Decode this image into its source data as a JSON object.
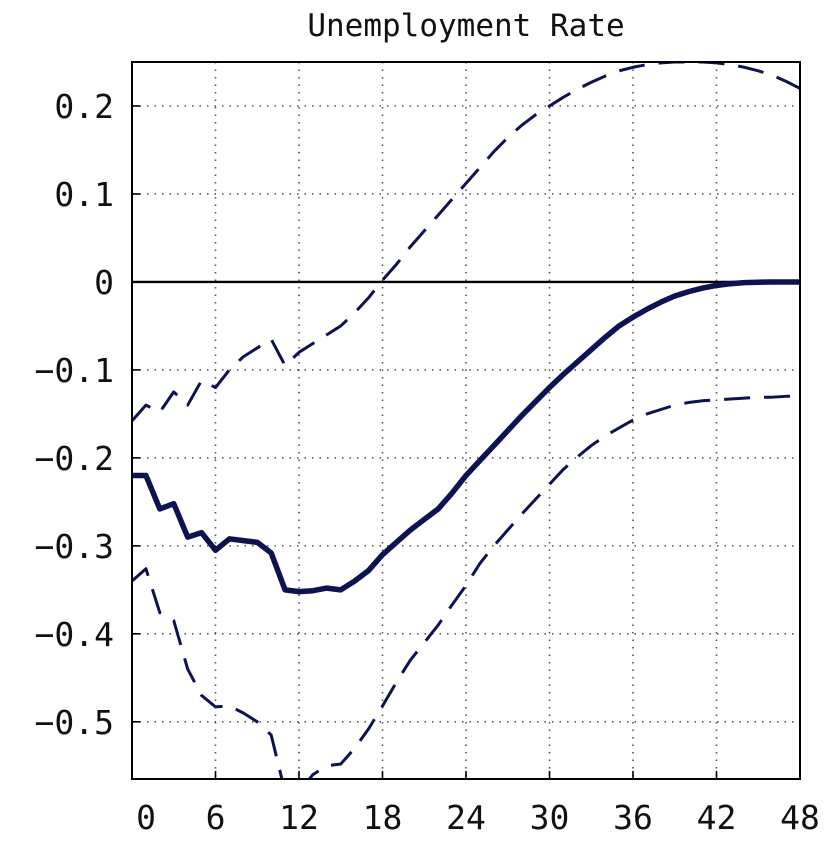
{
  "chart_data": {
    "type": "line",
    "title": "Unemployment Rate",
    "xlabel": "",
    "ylabel": "",
    "xlim": [
      0,
      48
    ],
    "ylim": [
      -0.565,
      0.25
    ],
    "grid": true,
    "x_ticks": [
      0,
      6,
      12,
      18,
      24,
      30,
      36,
      42,
      48
    ],
    "x_tick_labels": [
      "0",
      "6",
      "12",
      "18",
      "24",
      "30",
      "36",
      "42",
      "48"
    ],
    "y_ticks": [
      0.2,
      0.1,
      0,
      -0.1,
      -0.2,
      -0.3,
      -0.4,
      -0.5
    ],
    "y_tick_labels": [
      "0.2",
      "0.1",
      "0",
      "−0.1",
      "−0.2",
      "−0.3",
      "−0.4",
      "−0.5"
    ],
    "zero_line": true,
    "colors": {
      "series": "#0d1250",
      "axis": "#000000",
      "grid": "#555555"
    },
    "series": [
      {
        "role": "estimate",
        "style": "solid",
        "x": [
          0,
          1,
          2,
          3,
          4,
          5,
          6,
          7,
          8,
          9,
          10,
          11,
          12,
          13,
          14,
          15,
          16,
          17,
          18,
          19,
          20,
          21,
          22,
          23,
          24,
          25,
          26,
          27,
          28,
          29,
          30,
          31,
          32,
          33,
          34,
          35,
          36,
          37,
          38,
          39,
          40,
          41,
          42,
          43,
          44,
          45,
          46,
          47,
          48
        ],
        "values": [
          -0.22,
          -0.22,
          -0.258,
          -0.252,
          -0.29,
          -0.285,
          -0.305,
          -0.292,
          -0.294,
          -0.296,
          -0.308,
          -0.35,
          -0.352,
          -0.351,
          -0.348,
          -0.35,
          -0.34,
          -0.328,
          -0.31,
          -0.296,
          -0.282,
          -0.27,
          -0.258,
          -0.24,
          -0.22,
          -0.203,
          -0.186,
          -0.169,
          -0.152,
          -0.136,
          -0.12,
          -0.105,
          -0.091,
          -0.077,
          -0.063,
          -0.05,
          -0.04,
          -0.031,
          -0.023,
          -0.016,
          -0.011,
          -0.007,
          -0.004,
          -0.002,
          -0.0008,
          -0.0003,
          -0.0001,
          0.0,
          0.0
        ]
      },
      {
        "role": "upper-band",
        "style": "dashed",
        "x": [
          0,
          1,
          2,
          3,
          4,
          5,
          6,
          7,
          8,
          9,
          10,
          11,
          12,
          13,
          14,
          15,
          16,
          17,
          18,
          19,
          20,
          21,
          22,
          23,
          24,
          25,
          26,
          27,
          28,
          29,
          30,
          31,
          32,
          33,
          34,
          35,
          36,
          37,
          38,
          39,
          40,
          41,
          42,
          43,
          44,
          45,
          46,
          47,
          48
        ],
        "values": [
          -0.158,
          -0.14,
          -0.148,
          -0.125,
          -0.14,
          -0.112,
          -0.12,
          -0.1,
          -0.085,
          -0.075,
          -0.065,
          -0.095,
          -0.08,
          -0.07,
          -0.06,
          -0.05,
          -0.035,
          -0.018,
          0.002,
          0.02,
          0.04,
          0.058,
          0.076,
          0.094,
          0.112,
          0.13,
          0.148,
          0.164,
          0.178,
          0.19,
          0.2,
          0.21,
          0.219,
          0.227,
          0.234,
          0.24,
          0.244,
          0.247,
          0.249,
          0.25,
          0.25,
          0.25,
          0.249,
          0.247,
          0.244,
          0.24,
          0.235,
          0.228,
          0.22
        ]
      },
      {
        "role": "lower-band",
        "style": "dashed",
        "x": [
          0,
          1,
          2,
          3,
          4,
          5,
          6,
          7,
          8,
          9,
          10,
          11,
          12,
          13,
          14,
          15,
          16,
          17,
          18,
          19,
          20,
          21,
          22,
          23,
          24,
          25,
          26,
          27,
          28,
          29,
          30,
          31,
          32,
          33,
          34,
          35,
          36,
          37,
          38,
          39,
          40,
          41,
          42,
          43,
          44,
          45,
          46,
          47,
          48
        ],
        "values": [
          -0.34,
          -0.326,
          -0.376,
          -0.385,
          -0.44,
          -0.47,
          -0.483,
          -0.482,
          -0.49,
          -0.5,
          -0.515,
          -0.58,
          -0.58,
          -0.56,
          -0.55,
          -0.548,
          -0.53,
          -0.508,
          -0.482,
          -0.455,
          -0.43,
          -0.41,
          -0.39,
          -0.367,
          -0.345,
          -0.32,
          -0.3,
          -0.282,
          -0.264,
          -0.247,
          -0.23,
          -0.213,
          -0.199,
          -0.186,
          -0.175,
          -0.166,
          -0.157,
          -0.15,
          -0.145,
          -0.14,
          -0.137,
          -0.135,
          -0.134,
          -0.133,
          -0.132,
          -0.131,
          -0.131,
          -0.13,
          -0.13
        ]
      }
    ]
  }
}
